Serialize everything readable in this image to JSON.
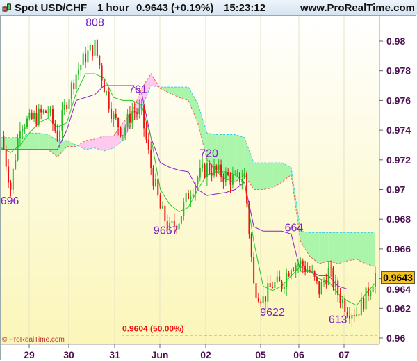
{
  "header": {
    "instrument": "Spot USD/CHF",
    "timeframe": "1 hour",
    "last_price": "0.9643 (+0.19%)",
    "time": "15:23:12",
    "site": "www.ProRealTime.com"
  },
  "copyright": "© ProRealTime.com",
  "colors": {
    "up": "#22bb22",
    "down": "#ee1111",
    "tenkan": "#22cc22",
    "kijun": "#8a22c8",
    "cloud_bull": "#aaf5aa",
    "cloud_bear": "#ffc8ee",
    "label": "#7a22c0",
    "axis_text": "#4a1050",
    "badge": "#f2c320"
  },
  "chart_data": {
    "type": "candlestick",
    "indicator": "ichimoku",
    "x_ticks": [
      "29",
      "30",
      "31",
      "Jun",
      "02",
      "05",
      "06",
      "07"
    ],
    "y_ticks": [
      "0.98",
      "0.978",
      "0.976",
      "0.974",
      "0.972",
      "0.97",
      "0.968",
      "0.966",
      "0.964",
      "0.962",
      "0.96"
    ],
    "ylim": [
      0.9596,
      0.9817
    ],
    "current_price": "0.9643",
    "close": [
      0.9736,
      0.9701,
      0.9745,
      0.9746,
      0.975,
      0.9753,
      0.9736,
      0.976,
      0.9778,
      0.979,
      0.9797,
      0.977,
      0.9748,
      0.9739,
      0.9753,
      0.9751,
      0.9715,
      0.9687,
      0.9673,
      0.968,
      0.9697,
      0.9708,
      0.9715,
      0.9712,
      0.9709,
      0.9706,
      0.971,
      0.9635,
      0.9626,
      0.9636,
      0.9636,
      0.965,
      0.965,
      0.9645,
      0.9632,
      0.9645,
      0.963,
      0.962,
      0.9617,
      0.9628,
      0.9643
    ],
    "tenkan": [
      0.9728,
      0.9725,
      0.973,
      0.9738,
      0.9745,
      0.9748,
      0.9742,
      0.9745,
      0.9765,
      0.9778,
      0.9778,
      0.9775,
      0.9762,
      0.976,
      0.976,
      0.9757,
      0.9735,
      0.97,
      0.969,
      0.9685,
      0.9688,
      0.97,
      0.971,
      0.9712,
      0.9712,
      0.971,
      0.9705,
      0.9665,
      0.9635,
      0.9632,
      0.9635,
      0.9642,
      0.9648,
      0.9645,
      0.964,
      0.9638,
      0.963,
      0.9625,
      0.9622,
      0.963,
      0.9637
    ],
    "kijun": [
      0.9727,
      0.9727,
      0.9727,
      0.9727,
      0.9727,
      0.9727,
      0.9727,
      0.974,
      0.976,
      0.9762,
      0.9764,
      0.977,
      0.977,
      0.977,
      0.977,
      0.9765,
      0.9735,
      0.9718,
      0.9715,
      0.9713,
      0.9712,
      0.97,
      0.9696,
      0.9697,
      0.9698,
      0.97,
      0.9705,
      0.9675,
      0.9672,
      0.9672,
      0.9672,
      0.967,
      0.9645,
      0.9645,
      0.9642,
      0.9642,
      0.9635,
      0.9633,
      0.9633,
      0.9633,
      0.9633
    ],
    "span_a": [
      0.9735,
      0.9735,
      0.9735,
      0.9738,
      0.9738,
      0.9737,
      0.9733,
      0.9733,
      0.973,
      0.9727,
      0.9728,
      0.9726,
      0.9728,
      0.9733,
      0.9745,
      0.9755,
      0.977,
      0.9769,
      0.9769,
      0.9769,
      0.9769,
      0.9758,
      0.9738,
      0.9737,
      0.9737,
      0.9737,
      0.9735,
      0.9718,
      0.9718,
      0.9718,
      0.9718,
      0.9715,
      0.9672,
      0.9671,
      0.9671,
      0.9671,
      0.9671,
      0.9671,
      0.9671,
      0.9671,
      0.9671
    ],
    "span_b": [
      0.9727,
      0.9727,
      0.9727,
      0.9727,
      0.9727,
      0.9727,
      0.9722,
      0.9729,
      0.9729,
      0.9733,
      0.9734,
      0.9736,
      0.9736,
      0.9745,
      0.9752,
      0.9768,
      0.9778,
      0.9768,
      0.9765,
      0.9762,
      0.976,
      0.9745,
      0.972,
      0.9712,
      0.9707,
      0.9705,
      0.971,
      0.97,
      0.97,
      0.9701,
      0.9705,
      0.971,
      0.9665,
      0.9655,
      0.965,
      0.9652,
      0.965,
      0.9652,
      0.9653,
      0.965,
      0.9648
    ],
    "annotations": [
      {
        "text": "808",
        "price": 0.981,
        "index": 10
      },
      {
        "text": "761",
        "price": 0.9765,
        "index": 14.6
      },
      {
        "text": "720",
        "price": 0.9722,
        "index": 22.2
      },
      {
        "text": "696",
        "price": 0.969,
        "index": 0.9
      },
      {
        "text": "9667",
        "price": 0.967,
        "index": 17.6
      },
      {
        "text": "9622",
        "price": 0.9615,
        "index": 29
      },
      {
        "text": "664",
        "price": 0.9672,
        "index": 31.3
      },
      {
        "text": "613",
        "price": 0.961,
        "index": 36
      }
    ],
    "fib_level": {
      "label": "0.9604 (50.00%)",
      "price": 0.9602
    }
  }
}
